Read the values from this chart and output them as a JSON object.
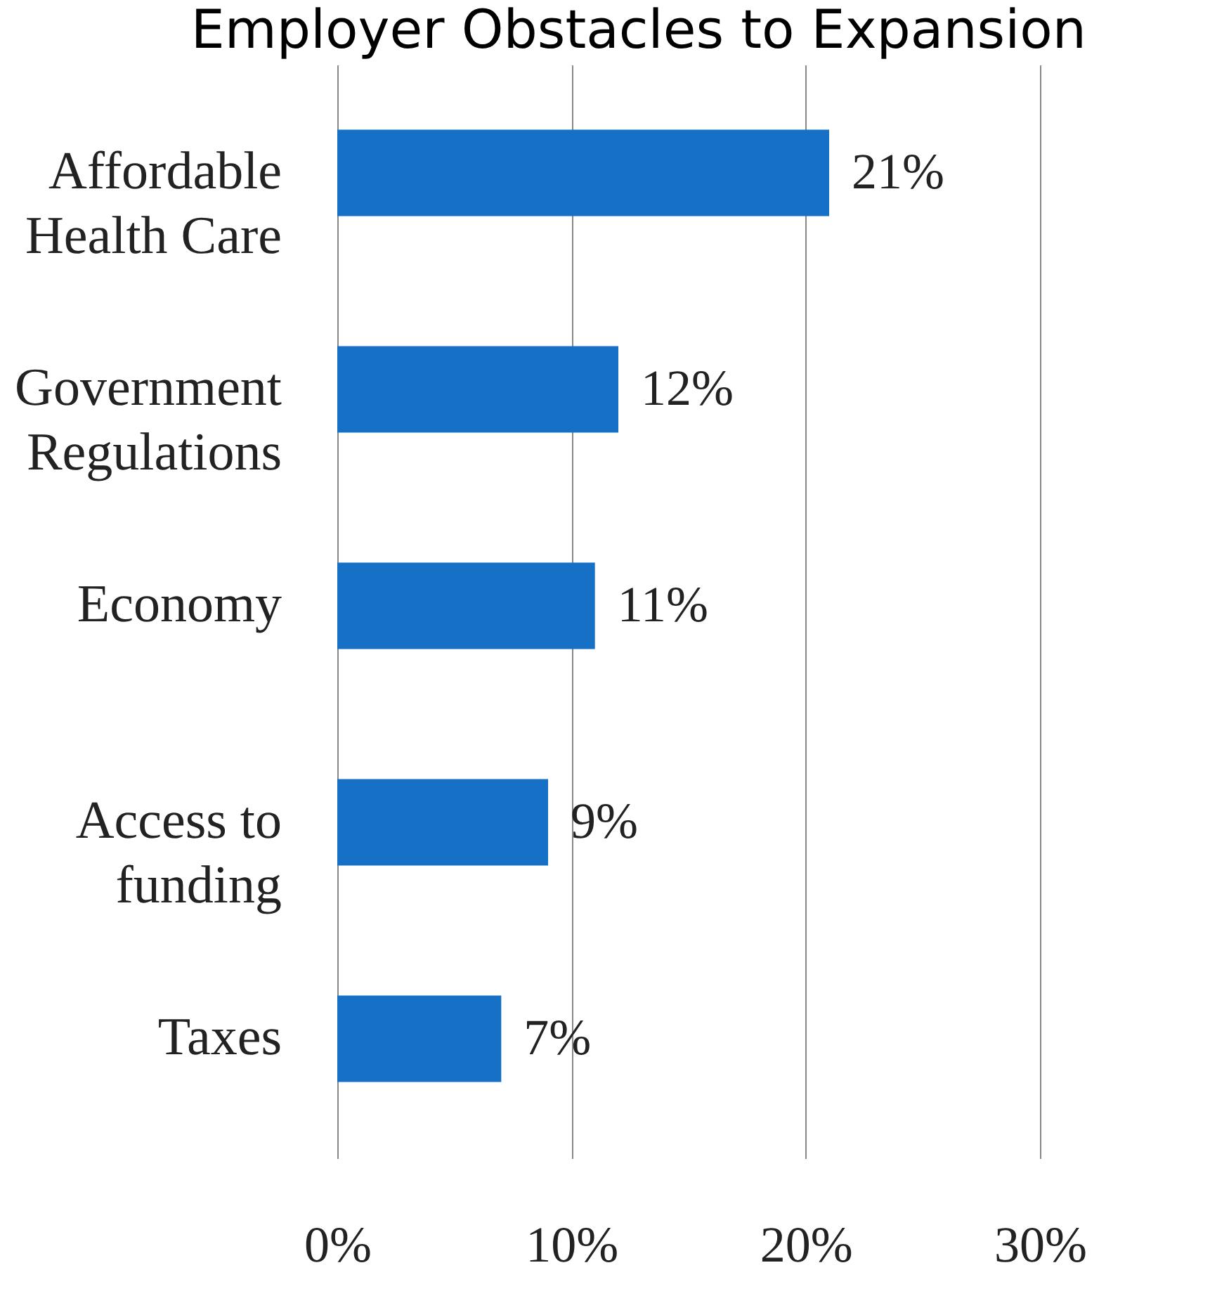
{
  "chart_data": {
    "type": "bar",
    "orientation": "horizontal",
    "title": "Employer Obstacles to Expansion",
    "categories": [
      "Affordable\nHealth Care",
      "Government\nRegulations",
      "Economy",
      "Access to\nfunding",
      "Taxes"
    ],
    "values": [
      21,
      12,
      11,
      9,
      7
    ],
    "color": "#1570c6",
    "value_labels": [
      "21%",
      "12%",
      "11%",
      "9%",
      "7%"
    ],
    "xlim": [
      0,
      30
    ],
    "xticks": [
      {
        "value": 0,
        "label": "0%"
      },
      {
        "value": 10,
        "label": "10%"
      },
      {
        "value": 20,
        "label": "20%"
      },
      {
        "value": 30,
        "label": "30%"
      }
    ],
    "grid": "x"
  }
}
